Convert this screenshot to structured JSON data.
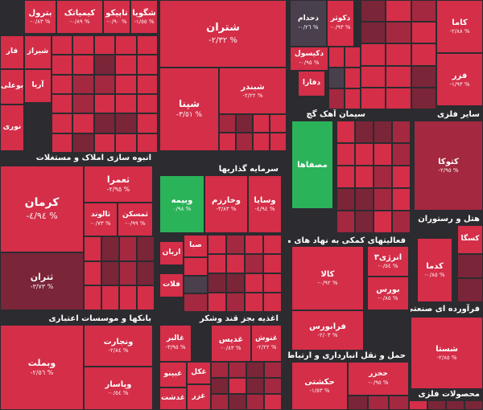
{
  "colors": {
    "down": "#d42e48",
    "down_dark": "#a4283f",
    "down_darker": "#7a2538",
    "neutral": "#4a3f4c",
    "up": "#2bb35a",
    "up_light": "#3fc066",
    "background": "#2b2b30"
  },
  "chart_data": {
    "type": "treemap",
    "title": "",
    "sectors": [
      {
        "name": "سرمایه گذاریها"
      },
      {
        "name": "سیمان آهک گچ"
      },
      {
        "name": "انبوه سازی املاک و مستغلات"
      },
      {
        "name": "فعالیتهای کمکی به نهاد های مالی"
      },
      {
        "name": "بانکها و موسسات اعتباری"
      },
      {
        "name": "اغذیه بجز قند وشکر"
      },
      {
        "name": "حمل و نقل انبارداری و ارتباطات"
      },
      {
        "name": "محصولات فلزی"
      },
      {
        "name": "هتل و رستوران"
      },
      {
        "name": "فرآورده ای صنعتی"
      },
      {
        "name": "سایر فلزی"
      }
    ],
    "tiles": [
      {
        "name": "بترول",
        "pct": "-٠/٨٣ %",
        "color": "down"
      },
      {
        "name": "کیمیاتک",
        "pct": "-٠/٨٩ %",
        "color": "down"
      },
      {
        "name": "تاپیکو",
        "pct": "-٠/٩٠ %",
        "color": "down"
      },
      {
        "name": "شگویا",
        "pct": "-١/٥٥ %",
        "color": "down"
      },
      {
        "name": "شتران",
        "pct": "-٢/٣٢ %",
        "color": "down"
      },
      {
        "name": "شپنا",
        "pct": "-٣/٥١ %",
        "color": "down"
      },
      {
        "name": "شبندر",
        "pct": "-٢/٢٢ %",
        "color": "down"
      },
      {
        "name": "دحدام",
        "pct": "-٠/٢٦ %",
        "color": "neutral"
      },
      {
        "name": "دکوثر",
        "pct": "-٠/٩٣ %",
        "color": "down"
      },
      {
        "name": "دکیسول",
        "pct": "-٠/٩٥ %",
        "color": "down"
      },
      {
        "name": "دفارا",
        "pct": "",
        "color": "down"
      },
      {
        "name": "کاما",
        "pct": "-٢/٨٨ %",
        "color": "down"
      },
      {
        "name": "فزر",
        "pct": "-١/٩٣ %",
        "color": "down"
      },
      {
        "name": "شیراز",
        "pct": "",
        "color": "down"
      },
      {
        "name": "آریا",
        "pct": "",
        "color": "down"
      },
      {
        "name": "کرمان",
        "pct": "-٤/٩٤ %",
        "color": "down"
      },
      {
        "name": "ثعمرا",
        "pct": "-٢/٩٥ %",
        "color": "down"
      },
      {
        "name": "ثالوند",
        "pct": "-٠/٧٣ %",
        "color": "down"
      },
      {
        "name": "ثمسکن",
        "pct": "-٠/٩٩ %",
        "color": "down"
      },
      {
        "name": "ثتران",
        "pct": "-٣/٧٣ %",
        "color": "down_darker"
      },
      {
        "name": "وبیمه",
        "pct": "٠/٩٨ %",
        "color": "up"
      },
      {
        "name": "وخارزم",
        "pct": "-٣/٨٣ %",
        "color": "down"
      },
      {
        "name": "وسایا",
        "pct": "-٤/٩٤ %",
        "color": "down"
      },
      {
        "name": "صبا",
        "pct": "",
        "color": "down"
      },
      {
        "name": "اربان",
        "pct": "",
        "color": "down"
      },
      {
        "name": "فلات",
        "pct": "",
        "color": "down"
      },
      {
        "name": "مصفاها",
        "pct": "",
        "color": "up"
      },
      {
        "name": "کتوکا",
        "pct": "-٢/٩٥ %",
        "color": "down_dark"
      },
      {
        "name": "کالا",
        "pct": "-٠/٩٢ %",
        "color": "down"
      },
      {
        "name": "انرژی۳",
        "pct": "-٠/٥٤ %",
        "color": "down"
      },
      {
        "name": "بورس",
        "pct": "-٠/٨٥ %",
        "color": "down"
      },
      {
        "name": "فرابورس",
        "pct": "-٢/٠٣ %",
        "color": "down"
      },
      {
        "name": "کدما",
        "pct": "-٠/٨٥ %",
        "color": "down"
      },
      {
        "name": "کسگا",
        "pct": "",
        "color": "down"
      },
      {
        "name": "ونجارت",
        "pct": "-٢/٨٤ %",
        "color": "down"
      },
      {
        "name": "وپاسار",
        "pct": "-٠/٥٤ %",
        "color": "down"
      },
      {
        "name": "وبملت",
        "pct": "-٢/٥٦ %",
        "color": "down"
      },
      {
        "name": "غالبر",
        "pct": "-٣/٩٥ %",
        "color": "down"
      },
      {
        "name": "غدیس",
        "pct": "-٠/٨٣ %",
        "color": "down"
      },
      {
        "name": "غنوش",
        "pct": "-٢/٢٢ %",
        "color": "down"
      },
      {
        "name": "غکل",
        "pct": "",
        "color": "down"
      },
      {
        "name": "غبینو",
        "pct": "",
        "color": "down"
      },
      {
        "name": "غزر",
        "pct": "",
        "color": "down"
      },
      {
        "name": "غدشت",
        "pct": "",
        "color": "down"
      },
      {
        "name": "حکشتی",
        "pct": "-١/٥٣ %",
        "color": "down"
      },
      {
        "name": "حخزر",
        "pct": "-٠/٩٥ %",
        "color": "down"
      },
      {
        "name": "شستا",
        "pct": "-٢/٨٥ %",
        "color": "down"
      },
      {
        "name": "نوری",
        "pct": "",
        "color": "down"
      },
      {
        "name": "بوعلی",
        "pct": "",
        "color": "down"
      },
      {
        "name": "قار",
        "pct": "",
        "color": "down"
      }
    ]
  }
}
